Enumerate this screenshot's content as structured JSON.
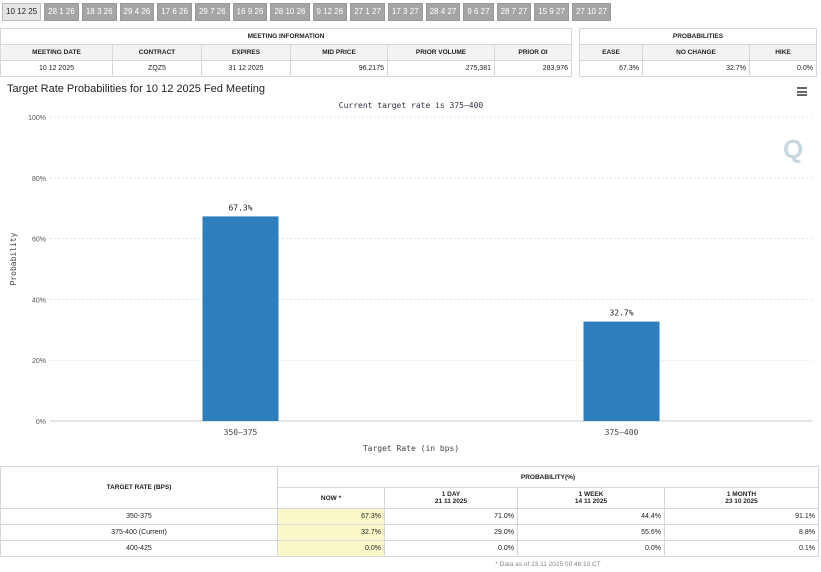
{
  "tabs": [
    "10 12 25",
    "28 1 26",
    "18 3 26",
    "29 4 26",
    "17 6 26",
    "29 7 26",
    "16 9 26",
    "28 10 26",
    "9 12 26",
    "27 1 27",
    "17 3 27",
    "28 4 27",
    "9 6 27",
    "28 7 27",
    "15 9 27",
    "27 10 27"
  ],
  "meeting_info": {
    "title": "MEETING INFORMATION",
    "headers": [
      "MEETING DATE",
      "CONTRACT",
      "EXPIRES",
      "MID PRICE",
      "PRIOR VOLUME",
      "PRIOR OI"
    ],
    "values": [
      "10 12 2025",
      "ZQZ5",
      "31 12 2025",
      "96.2175",
      "275,381",
      "283,976"
    ]
  },
  "probabilities": {
    "title": "PROBABILITIES",
    "headers": [
      "EASE",
      "NO CHANGE",
      "HIKE"
    ],
    "values": [
      "67.3%",
      "32.7%",
      "0.0%"
    ]
  },
  "chart_title": "Target Rate Probabilities for 10 12 2025 Fed Meeting",
  "chart_data": {
    "type": "bar",
    "title": "Target Rate Probabilities for 10 12 2025 Fed Meeting",
    "subtitle": "Current target rate is 375–400",
    "categories": [
      "350–375",
      "375–400"
    ],
    "values": [
      67.3,
      32.7
    ],
    "data_labels": [
      "67.3%",
      "32.7%"
    ],
    "xlabel": "Target Rate (in bps)",
    "ylabel": "Probability",
    "ylim": [
      0,
      100
    ],
    "yticks": [
      0,
      20,
      40,
      60,
      80,
      100
    ],
    "ytick_labels": [
      "0%",
      "20%",
      "40%",
      "60%",
      "80%",
      "100%"
    ],
    "grid": true,
    "bar_color": "#2f7ebc"
  },
  "bottom_table": {
    "target_rate_header": "TARGET RATE (BPS)",
    "probability_header": "PROBABILITY(%)",
    "columns": [
      {
        "label": "NOW *",
        "date": ""
      },
      {
        "label": "1 DAY",
        "date": "21 11 2025"
      },
      {
        "label": "1 WEEK",
        "date": "14 11 2025"
      },
      {
        "label": "1 MONTH",
        "date": "23 10 2025"
      }
    ],
    "rows": [
      {
        "rate": "350-375",
        "values": [
          "67.3%",
          "71.0%",
          "44.4%",
          "91.1%"
        ]
      },
      {
        "rate": "375-400 (Current)",
        "values": [
          "32.7%",
          "29.0%",
          "55.6%",
          "8.8%"
        ]
      },
      {
        "rate": "400-425",
        "values": [
          "0.0%",
          "0.0%",
          "0.0%",
          "0.1%"
        ]
      }
    ],
    "footnote": "* Data as of 23 11 2025 09:46:13 CT"
  },
  "colors": {
    "bar": "#2f7ebc",
    "now_highlight": "#f8f8c8",
    "tab_bg": "#a5a5a5"
  }
}
